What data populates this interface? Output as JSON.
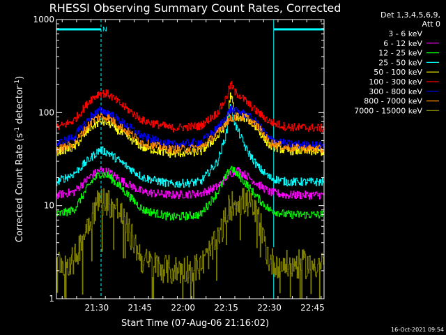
{
  "chart_data": {
    "type": "line",
    "title": "RHESSI Observing Summary Count Rates, Corrected",
    "xlabel": "Start Time (07-Aug-06 21:16:02)",
    "ylabel_main": "Corrected Count Rate (s",
    "ylabel_sup1": "-1",
    "ylabel_mid": " detector",
    "ylabel_sup2": "-1",
    "ylabel_end": ")",
    "yscale": "log",
    "ylim": [
      1,
      1000
    ],
    "xlim_min": [
      0,
      93
    ],
    "x_ticks": [
      {
        "min": 14,
        "label": "21:30"
      },
      {
        "min": 29,
        "label": "21:45"
      },
      {
        "min": 44,
        "label": "22:00"
      },
      {
        "min": 59,
        "label": "22:15"
      },
      {
        "min": 74,
        "label": "22:30"
      },
      {
        "min": 89,
        "label": "22:45"
      }
    ],
    "y_ticks": [
      {
        "value": 1,
        "label": "1"
      },
      {
        "value": 10,
        "label": "10"
      },
      {
        "value": 100,
        "label": "100"
      },
      {
        "value": 1000,
        "label": "1000"
      }
    ],
    "legend_header": [
      "Det 1,3,4,5,6,9,",
      "Att 0"
    ],
    "legend_placement": "right",
    "night_intervals_min": [
      [
        0,
        15.5
      ],
      [
        75.5,
        93
      ]
    ],
    "saa_label": "N",
    "footer_date": "16-Oct-2021 09:54",
    "series": [
      {
        "name": "3 - 6 keV",
        "color": "#000000",
        "x": [
          0,
          6,
          12,
          15,
          18,
          22,
          30,
          40,
          50,
          56,
          60,
          63,
          67,
          70,
          74,
          80,
          93
        ],
        "values": [
          2.7,
          2.7,
          8.5,
          11.5,
          11.5,
          9,
          2.7,
          2.2,
          2.3,
          4.5,
          10,
          11.5,
          11,
          8,
          2.7,
          2.5,
          2.5
        ]
      },
      {
        "name": "6 - 12 keV",
        "color": "#ff00ff",
        "x": [
          0,
          6,
          12,
          15,
          18,
          22,
          30,
          40,
          50,
          56,
          60,
          63,
          66,
          70,
          74,
          80,
          93
        ],
        "values": [
          13,
          14,
          21,
          24,
          23,
          19,
          14,
          13,
          13.5,
          16,
          22,
          24,
          21,
          17,
          14,
          13,
          13
        ]
      },
      {
        "name": "12 - 25 keV",
        "color": "#00ff00",
        "x": [
          0,
          6,
          12,
          15,
          18,
          22,
          30,
          40,
          50,
          56,
          59,
          60.5,
          62,
          66,
          70,
          74,
          80,
          93
        ],
        "values": [
          8,
          9,
          18,
          22,
          21,
          16,
          9,
          7.5,
          8,
          14,
          21,
          26,
          23,
          17,
          12,
          9,
          8,
          8
        ]
      },
      {
        "name": "25 - 50 keV",
        "color": "#00ffff",
        "x": [
          0,
          6,
          12,
          15,
          18,
          22,
          30,
          40,
          50,
          56,
          59,
          60.5,
          62,
          66,
          70,
          74,
          80,
          93
        ],
        "values": [
          18,
          22,
          33,
          40,
          37,
          30,
          20,
          17,
          18,
          30,
          60,
          120,
          75,
          40,
          26,
          20,
          18,
          18
        ]
      },
      {
        "name": "50 - 100 keV",
        "color": "#ffff00",
        "x": [
          0,
          6,
          12,
          15,
          18,
          22,
          30,
          40,
          50,
          56,
          59,
          60.5,
          62,
          64,
          66,
          70,
          74,
          80,
          93
        ],
        "values": [
          38,
          42,
          70,
          80,
          78,
          62,
          42,
          36,
          38,
          55,
          75,
          160,
          95,
          85,
          88,
          65,
          44,
          39,
          38
        ]
      },
      {
        "name": "100 - 300 keV",
        "color": "#ff0000",
        "x": [
          0,
          6,
          12,
          15,
          18,
          22,
          30,
          40,
          50,
          56,
          59,
          60.5,
          62,
          64,
          66,
          70,
          74,
          80,
          93
        ],
        "values": [
          68,
          82,
          140,
          163,
          158,
          125,
          82,
          68,
          72,
          100,
          145,
          205,
          165,
          150,
          130,
          100,
          80,
          70,
          68
        ]
      },
      {
        "name": "300 - 800 keV",
        "color": "#0000ff",
        "x": [
          0,
          6,
          12,
          15,
          18,
          22,
          30,
          40,
          50,
          56,
          59,
          60.5,
          62,
          64,
          66,
          70,
          74,
          80,
          93
        ],
        "values": [
          46,
          55,
          92,
          105,
          100,
          82,
          55,
          45,
          48,
          68,
          92,
          110,
          104,
          100,
          95,
          75,
          52,
          46,
          44
        ]
      },
      {
        "name": "800 - 7000 keV",
        "color": "#ff8c00",
        "x": [
          0,
          6,
          12,
          15,
          18,
          22,
          30,
          40,
          50,
          56,
          59,
          62,
          64,
          66,
          70,
          74,
          80,
          93
        ],
        "values": [
          40,
          46,
          80,
          92,
          88,
          72,
          47,
          40,
          42,
          60,
          80,
          90,
          90,
          88,
          70,
          48,
          42,
          40
        ]
      },
      {
        "name": "7000 - 15000 keV",
        "color": "#808000",
        "x": [
          0,
          6,
          12,
          15,
          18,
          22,
          30,
          40,
          50,
          56,
          60,
          63,
          67,
          70,
          74,
          80,
          93
        ],
        "values": [
          2.5,
          2.5,
          8,
          11.5,
          11,
          8.5,
          2.5,
          2.0,
          2.2,
          4.2,
          9.5,
          11.5,
          10.5,
          7.5,
          2.5,
          2.3,
          2.4
        ]
      }
    ]
  },
  "colors": {
    "background": "#000000",
    "axes": "#ffffff",
    "night": "#00ffff"
  }
}
